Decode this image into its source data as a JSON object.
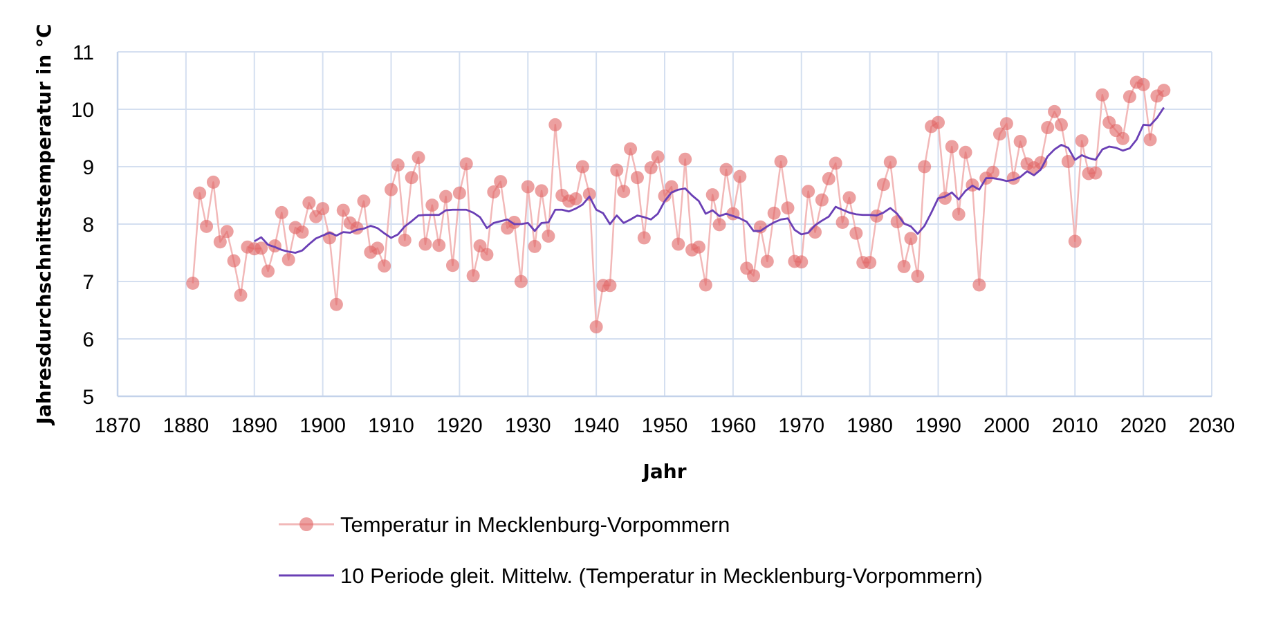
{
  "chart_data": {
    "type": "line",
    "title": "",
    "xlabel": "Jahr",
    "ylabel": "Jahresdurchschnittstemperatur in °C",
    "xlim": [
      1870,
      2030
    ],
    "ylim": [
      5,
      11
    ],
    "x_ticks": [
      1870,
      1880,
      1890,
      1900,
      1910,
      1920,
      1930,
      1940,
      1950,
      1960,
      1970,
      1980,
      1990,
      2000,
      2010,
      2020,
      2030
    ],
    "y_ticks": [
      5,
      6,
      7,
      8,
      9,
      10,
      11
    ],
    "grid": true,
    "legend_position": "bottom",
    "series": [
      {
        "name": "Temperatur in Mecklenburg-Vorpommern",
        "style": "line-with-markers",
        "color": "#e06666",
        "line_color": "#f2b8b8",
        "x": [
          1881,
          1882,
          1883,
          1884,
          1885,
          1886,
          1887,
          1888,
          1889,
          1890,
          1891,
          1892,
          1893,
          1894,
          1895,
          1896,
          1897,
          1898,
          1899,
          1900,
          1901,
          1902,
          1903,
          1904,
          1905,
          1906,
          1907,
          1908,
          1909,
          1910,
          1911,
          1912,
          1913,
          1914,
          1915,
          1916,
          1917,
          1918,
          1919,
          1920,
          1921,
          1922,
          1923,
          1924,
          1925,
          1926,
          1927,
          1928,
          1929,
          1930,
          1931,
          1932,
          1933,
          1934,
          1935,
          1936,
          1937,
          1938,
          1939,
          1940,
          1941,
          1942,
          1943,
          1944,
          1945,
          1946,
          1947,
          1948,
          1949,
          1950,
          1951,
          1952,
          1953,
          1954,
          1955,
          1956,
          1957,
          1958,
          1959,
          1960,
          1961,
          1962,
          1963,
          1964,
          1965,
          1966,
          1967,
          1968,
          1969,
          1970,
          1971,
          1972,
          1973,
          1974,
          1975,
          1976,
          1977,
          1978,
          1979,
          1980,
          1981,
          1982,
          1983,
          1984,
          1985,
          1986,
          1987,
          1988,
          1989,
          1990,
          1991,
          1992,
          1993,
          1994,
          1995,
          1996,
          1997,
          1998,
          1999,
          2000,
          2001,
          2002,
          2003,
          2004,
          2005,
          2006,
          2007,
          2008,
          2009,
          2010,
          2011,
          2012,
          2013,
          2014,
          2015,
          2016,
          2017,
          2018,
          2019,
          2020,
          2021,
          2022,
          2023
        ],
        "y": [
          6.97,
          8.54,
          7.96,
          8.73,
          7.69,
          7.87,
          7.36,
          6.76,
          7.6,
          7.57,
          7.58,
          7.18,
          7.62,
          8.2,
          7.38,
          7.94,
          7.86,
          8.37,
          8.13,
          8.27,
          7.76,
          6.6,
          8.24,
          8.02,
          7.93,
          8.4,
          7.51,
          7.58,
          7.27,
          8.6,
          9.03,
          7.72,
          8.81,
          9.16,
          7.65,
          8.33,
          7.63,
          8.48,
          7.28,
          8.54,
          9.05,
          7.1,
          7.62,
          7.47,
          8.56,
          8.74,
          7.93,
          8.03,
          7.0,
          8.65,
          7.61,
          8.58,
          7.79,
          9.73,
          8.5,
          8.4,
          8.44,
          9.0,
          8.52,
          6.21,
          6.93,
          6.93,
          8.94,
          8.57,
          9.31,
          8.81,
          7.76,
          8.98,
          9.17,
          8.49,
          8.65,
          7.65,
          9.13,
          7.55,
          7.6,
          6.94,
          8.51,
          7.99,
          8.95,
          8.18,
          8.83,
          7.23,
          7.1,
          7.95,
          7.35,
          8.19,
          9.09,
          8.28,
          7.35,
          7.34,
          8.57,
          7.86,
          8.42,
          8.79,
          9.06,
          8.03,
          8.46,
          7.84,
          7.33,
          7.33,
          8.14,
          8.69,
          9.08,
          8.04,
          7.26,
          7.75,
          7.09,
          9.0,
          9.7,
          9.77,
          8.45,
          9.35,
          8.17,
          9.25,
          8.68,
          6.94,
          8.8,
          8.9,
          9.57,
          9.75,
          8.8,
          9.44,
          9.05,
          8.98,
          9.07,
          9.68,
          9.96,
          9.73,
          9.09,
          7.7,
          9.45,
          8.88,
          8.89,
          10.25,
          9.77,
          9.63,
          9.49,
          10.22,
          10.47,
          10.43,
          9.47,
          10.23,
          10.33
        ]
      },
      {
        "name": "10 Periode gleit. Mittelw. (Temperatur in Mecklenburg-Vorpommern)",
        "style": "line",
        "color": "#6a3fb5",
        "x": [
          1890,
          1891,
          1892,
          1893,
          1894,
          1895,
          1896,
          1897,
          1898,
          1899,
          1900,
          1901,
          1902,
          1903,
          1904,
          1905,
          1906,
          1907,
          1908,
          1909,
          1910,
          1911,
          1912,
          1913,
          1914,
          1915,
          1916,
          1917,
          1918,
          1919,
          1920,
          1921,
          1922,
          1923,
          1924,
          1925,
          1926,
          1927,
          1928,
          1929,
          1930,
          1931,
          1932,
          1933,
          1934,
          1935,
          1936,
          1937,
          1938,
          1939,
          1940,
          1941,
          1942,
          1943,
          1944,
          1945,
          1946,
          1947,
          1948,
          1949,
          1950,
          1951,
          1952,
          1953,
          1954,
          1955,
          1956,
          1957,
          1958,
          1959,
          1960,
          1961,
          1962,
          1963,
          1964,
          1965,
          1966,
          1967,
          1968,
          1969,
          1970,
          1971,
          1972,
          1973,
          1974,
          1975,
          1976,
          1977,
          1978,
          1979,
          1980,
          1981,
          1982,
          1983,
          1984,
          1985,
          1986,
          1987,
          1988,
          1989,
          1990,
          1991,
          1992,
          1993,
          1994,
          1995,
          1996,
          1997,
          1998,
          1999,
          2000,
          2001,
          2002,
          2003,
          2004,
          2005,
          2006,
          2007,
          2008,
          2009,
          2010,
          2011,
          2012,
          2013,
          2014,
          2015,
          2016,
          2017,
          2018,
          2019,
          2020,
          2021,
          2022,
          2023
        ],
        "y": [
          7.7,
          7.77,
          7.64,
          7.6,
          7.55,
          7.52,
          7.5,
          7.54,
          7.65,
          7.75,
          7.8,
          7.85,
          7.8,
          7.86,
          7.85,
          7.9,
          7.92,
          7.97,
          7.93,
          7.84,
          7.76,
          7.82,
          7.96,
          8.05,
          8.15,
          8.16,
          8.16,
          8.16,
          8.24,
          8.25,
          8.25,
          8.25,
          8.2,
          8.12,
          7.93,
          8.02,
          8.05,
          8.08,
          8.0,
          8.0,
          8.02,
          7.88,
          8.02,
          8.03,
          8.25,
          8.25,
          8.22,
          8.27,
          8.34,
          8.48,
          8.25,
          8.19,
          8.0,
          8.15,
          8.02,
          8.08,
          8.15,
          8.12,
          8.08,
          8.18,
          8.4,
          8.55,
          8.6,
          8.62,
          8.5,
          8.4,
          8.18,
          8.24,
          8.14,
          8.18,
          8.14,
          8.1,
          8.04,
          7.88,
          7.88,
          7.96,
          8.03,
          8.08,
          8.1,
          7.9,
          7.82,
          7.85,
          7.98,
          8.06,
          8.13,
          8.3,
          8.25,
          8.2,
          8.17,
          8.16,
          8.16,
          8.15,
          8.2,
          8.28,
          8.18,
          8.01,
          7.96,
          7.83,
          7.97,
          8.2,
          8.45,
          8.48,
          8.55,
          8.43,
          8.58,
          8.67,
          8.6,
          8.8,
          8.8,
          8.78,
          8.75,
          8.77,
          8.82,
          8.92,
          8.85,
          8.95,
          9.18,
          9.3,
          9.38,
          9.33,
          9.12,
          9.2,
          9.15,
          9.12,
          9.3,
          9.35,
          9.33,
          9.28,
          9.32,
          9.47,
          9.73,
          9.72,
          9.85,
          10.03
        ]
      }
    ]
  }
}
